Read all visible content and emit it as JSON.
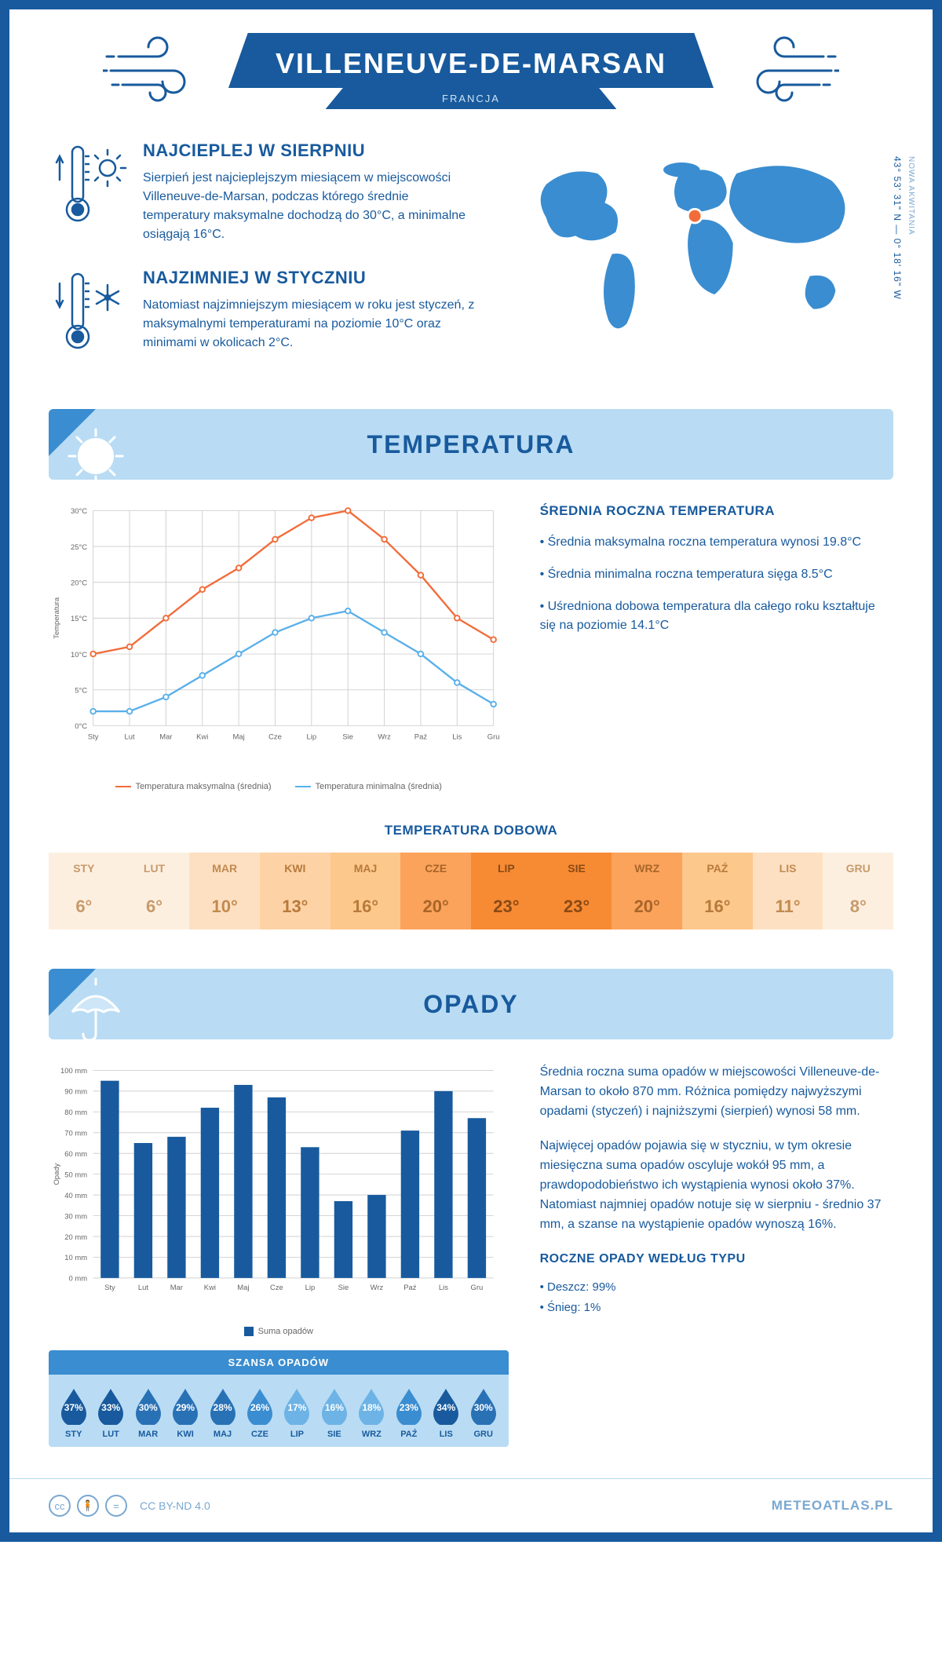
{
  "header": {
    "city": "VILLENEUVE-DE-MARSAN",
    "country": "FRANCJA"
  },
  "coords": "43° 53' 31\" N — 0° 18' 16\" W",
  "region": "NOWA AKWITANIA",
  "warm": {
    "title": "NAJCIEPLEJ W SIERPNIU",
    "text": "Sierpień jest najcieplejszym miesiącem w miejscowości Villeneuve-de-Marsan, podczas którego średnie temperatury maksymalne dochodzą do 30°C, a minimalne osiągają 16°C."
  },
  "cold": {
    "title": "NAJZIMNIEJ W STYCZNIU",
    "text": "Natomiast najzimniejszym miesiącem w roku jest styczeń, z maksymalnymi temperaturami na poziomie 10°C oraz minimami w okolicach 2°C."
  },
  "temp_section": {
    "title": "TEMPERATURA",
    "info_title": "ŚREDNIA ROCZNA TEMPERATURA",
    "bullet1": "• Średnia maksymalna roczna temperatura wynosi 19.8°C",
    "bullet2": "• Średnia minimalna roczna temperatura sięga 8.5°C",
    "bullet3": "• Uśredniona dobowa temperatura dla całego roku kształtuje się na poziomie 14.1°C"
  },
  "temp_chart": {
    "type": "line",
    "months": [
      "Sty",
      "Lut",
      "Mar",
      "Kwi",
      "Maj",
      "Cze",
      "Lip",
      "Sie",
      "Wrz",
      "Paź",
      "Lis",
      "Gru"
    ],
    "max_series": [
      10,
      11,
      15,
      19,
      22,
      26,
      29,
      30,
      26,
      21,
      15,
      12
    ],
    "min_series": [
      2,
      2,
      4,
      7,
      10,
      13,
      15,
      16,
      13,
      10,
      6,
      3
    ],
    "max_color": "#f26c3a",
    "min_color": "#5ab0ea",
    "ylim": [
      0,
      30
    ],
    "ytick_step": 5,
    "ylabel": "Temperatura",
    "grid_color": "#d0d0d0",
    "legend_max": "Temperatura maksymalna (średnia)",
    "legend_min": "Temperatura minimalna (średnia)",
    "label_fontsize": 10
  },
  "dobowa": {
    "title": "TEMPERATURA DOBOWA",
    "months": [
      "STY",
      "LUT",
      "MAR",
      "KWI",
      "MAJ",
      "CZE",
      "LIP",
      "SIE",
      "WRZ",
      "PAŹ",
      "LIS",
      "GRU"
    ],
    "values": [
      "6°",
      "6°",
      "10°",
      "13°",
      "16°",
      "20°",
      "23°",
      "23°",
      "20°",
      "16°",
      "11°",
      "8°"
    ],
    "bg_colors": [
      "#fdefe0",
      "#fdefe0",
      "#fde0c2",
      "#fdd3a6",
      "#fdc88c",
      "#fba35b",
      "#f78b33",
      "#f78b33",
      "#fba35b",
      "#fdc88c",
      "#fde0c2",
      "#fdefe0"
    ],
    "text_colors": [
      "#c79a6b",
      "#c79a6b",
      "#c28a50",
      "#b87a3c",
      "#b87a3c",
      "#a8652a",
      "#8a4a16",
      "#8a4a16",
      "#a8652a",
      "#b87a3c",
      "#c28a50",
      "#c79a6b"
    ]
  },
  "rain_section": {
    "title": "OPADY",
    "text1": "Średnia roczna suma opadów w miejscowości Villeneuve-de-Marsan to około 870 mm. Różnica pomiędzy najwyższymi opadami (styczeń) i najniższymi (sierpień) wynosi 58 mm.",
    "text2": "Najwięcej opadów pojawia się w styczniu, w tym okresie miesięczna suma opadów oscyluje wokół 95 mm, a prawdopodobieństwo ich wystąpienia wynosi około 37%. Natomiast najmniej opadów notuje się w sierpniu - średnio 37 mm, a szanse na wystąpienie opadów wynoszą 16%."
  },
  "rain_chart": {
    "type": "bar",
    "months": [
      "Sty",
      "Lut",
      "Mar",
      "Kwi",
      "Maj",
      "Cze",
      "Lip",
      "Sie",
      "Wrz",
      "Paź",
      "Lis",
      "Gru"
    ],
    "values": [
      95,
      65,
      68,
      82,
      93,
      87,
      63,
      37,
      40,
      71,
      90,
      77
    ],
    "bar_color": "#185a9d",
    "ylim": [
      0,
      100
    ],
    "ytick_step": 10,
    "ylabel": "Opady",
    "grid_color": "#d0d0d0",
    "legend": "Suma opadów",
    "label_fontsize": 10
  },
  "chance": {
    "title": "SZANSA OPADÓW",
    "months": [
      "STY",
      "LUT",
      "MAR",
      "KWI",
      "MAJ",
      "CZE",
      "LIP",
      "SIE",
      "WRZ",
      "PAŹ",
      "LIS",
      "GRU"
    ],
    "pct": [
      "37%",
      "33%",
      "30%",
      "29%",
      "28%",
      "26%",
      "17%",
      "16%",
      "18%",
      "23%",
      "34%",
      "30%"
    ],
    "drop_colors": [
      "#185a9d",
      "#185a9d",
      "#2971b5",
      "#2971b5",
      "#2971b5",
      "#3a8dd0",
      "#6db3e6",
      "#6db3e6",
      "#6db3e6",
      "#3a8dd0",
      "#185a9d",
      "#2971b5"
    ]
  },
  "rain_type": {
    "title": "ROCZNE OPADY WEDŁUG TYPU",
    "line1": "• Deszcz: 99%",
    "line2": "• Śnieg: 1%"
  },
  "footer": {
    "license": "CC BY-ND 4.0",
    "brand": "METEOATLAS.PL"
  }
}
